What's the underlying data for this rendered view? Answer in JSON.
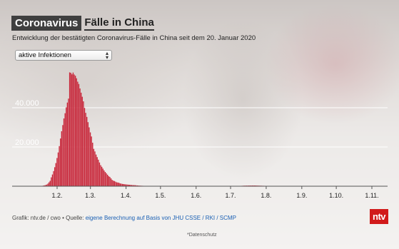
{
  "header": {
    "title_box": "Coronavirus",
    "title_rest": "Fälle in China",
    "subtitle": "Entwicklung der bestätigten Coronavirus-Fälle in China seit dem 20. Januar 2020"
  },
  "selector": {
    "selected": "aktive Infektionen"
  },
  "chart_data": {
    "type": "bar",
    "x_tick_labels": [
      "1.2.",
      "1.3.",
      "1.4.",
      "1.5.",
      "1.6.",
      "1.7.",
      "1.8.",
      "1.9.",
      "1.10.",
      "1.11."
    ],
    "y_tick_labels": [
      "20.000",
      "40.000"
    ],
    "x_start_date": "2020-01-20",
    "ylim": [
      0,
      60000
    ],
    "bar_color": "#c8283b",
    "grid": true,
    "daily_values": [
      291,
      440,
      571,
      830,
      1287,
      1975,
      2744,
      4515,
      5974,
      7711,
      9692,
      11791,
      14380,
      17205,
      20438,
      24324,
      28018,
      31161,
      34546,
      37198,
      40171,
      42638,
      44653,
      58016,
      57805,
      57017,
      57934,
      56933,
      56301,
      55003,
      53284,
      52093,
      49824,
      47672,
      45604,
      43258,
      39919,
      37414,
      35329,
      32652,
      30004,
      27433,
      25352,
      22177,
      19016,
      17721,
      16145,
      14831,
      13526,
      12094,
      10734,
      9893,
      8967,
      8056,
      7263,
      6569,
      5846,
      5120,
      4735,
      4004,
      3226,
      2830,
      2622,
      2314,
      1973,
      1874,
      1731,
      1424,
      1299,
      1156,
      1077,
      983,
      905,
      857,
      779,
      737,
      706,
      620,
      577,
      531,
      520,
      437,
      380,
      332,
      290,
      260,
      229,
      201,
      178,
      158,
      140,
      128,
      116,
      104,
      96,
      90,
      84,
      79,
      75,
      72,
      70,
      68,
      66,
      64,
      62,
      60,
      58,
      56,
      54,
      52,
      50,
      48,
      46,
      44,
      42,
      40,
      38,
      36,
      34,
      32,
      30,
      28,
      26,
      25,
      24,
      23,
      22,
      21,
      20,
      19,
      18,
      17,
      16,
      15,
      15,
      14,
      14,
      13,
      13,
      12,
      12,
      11,
      11,
      10,
      10,
      10,
      9,
      9,
      9,
      8,
      8,
      8,
      8,
      7,
      7,
      7,
      7,
      6,
      6,
      6,
      6,
      6,
      5,
      5,
      5,
      5,
      5,
      5,
      6,
      12,
      40,
      95,
      160,
      210,
      250,
      280,
      300,
      310,
      320,
      330,
      340,
      350,
      360,
      370,
      360,
      350,
      330,
      310,
      290,
      270,
      250,
      230,
      210,
      190,
      170,
      150,
      130,
      110,
      100,
      90,
      80,
      70,
      60,
      55,
      50,
      45,
      40,
      38,
      36,
      34,
      32,
      30,
      30,
      30,
      30,
      30,
      30,
      30,
      30,
      30,
      30,
      30,
      30,
      30,
      30,
      30,
      30,
      30,
      30,
      30,
      30,
      30,
      30,
      30,
      30,
      30,
      30,
      30,
      30,
      30,
      30,
      30,
      30,
      30,
      30,
      30,
      30,
      30,
      30,
      30,
      30,
      30,
      30,
      30,
      30,
      30,
      30,
      30,
      30,
      30,
      30,
      30,
      30,
      30,
      30,
      30,
      30,
      30,
      30,
      30,
      30,
      30,
      30,
      30,
      30,
      30,
      30,
      30,
      30,
      30,
      30,
      30,
      30,
      30,
      30,
      30,
      30,
      30,
      30,
      30,
      30,
      30,
      30,
      30,
      30,
      30,
      30,
      30,
      30,
      30,
      30
    ]
  },
  "footer": {
    "source_prefix": "Grafik: ntv.de / cwo • Quelle: ",
    "source_link": "eigene Berechnung auf Basis von JHU CSSE / RKI / SCMP",
    "privacy": "*Datenschutz",
    "logo": "ntv"
  }
}
